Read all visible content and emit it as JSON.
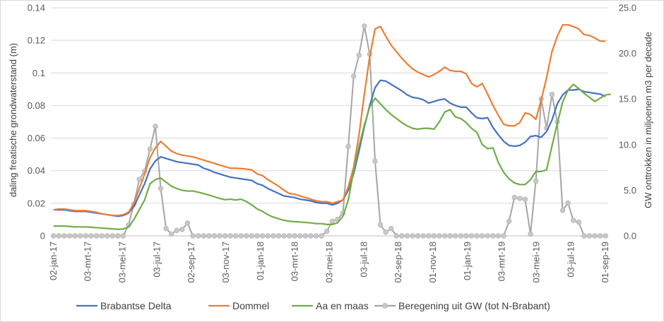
{
  "chart_data": {
    "type": "line",
    "ylabel_left": "daling freatische grondwaterstand (m)",
    "ylabel_right": "GW onttrokken in miljoenen m3 per decade",
    "ylim_left": [
      0,
      0.14
    ],
    "ylim_right": [
      0,
      25
    ],
    "yticks_left": [
      "0",
      "0.02",
      "0.04",
      "0.06",
      "0.08",
      "0.1",
      "0.12",
      "0.14"
    ],
    "yticks_right": [
      "0.0",
      "5.0",
      "10.0",
      "15.0",
      "20.0",
      "25.0"
    ],
    "x_labels": [
      "02-jan-17",
      "03-mrt-17",
      "03-mei-17",
      "03-jul-17",
      "02-sep-17",
      "03-nov-17",
      "01-jan-18",
      "03-mrt-18",
      "03-mei-18",
      "03-jul-18",
      "02-sep-18",
      "01-nov-18",
      "01-jan-19",
      "03-mrt-19",
      "03-mei-19",
      "03-jul-19",
      "01-sep-19"
    ],
    "grid": "horizontal",
    "legend_position": "bottom",
    "colors": {
      "brabantse_delta": "#4472c4",
      "dommel": "#ed7d31",
      "aa_en_maas": "#70ad47",
      "beregening": "#a5a5a5"
    },
    "series": [
      {
        "name": "Brabantse Delta",
        "axis": "left",
        "values": [
          0.016,
          0.016,
          0.016,
          0.0155,
          0.015,
          0.015,
          0.015,
          0.0145,
          0.014,
          0.0135,
          0.013,
          0.0125,
          0.012,
          0.0125,
          0.014,
          0.018,
          0.025,
          0.032,
          0.041,
          0.046,
          0.0485,
          0.0475,
          0.0465,
          0.0455,
          0.045,
          0.0445,
          0.044,
          0.0435,
          0.0415,
          0.0405,
          0.039,
          0.038,
          0.037,
          0.036,
          0.0355,
          0.035,
          0.0345,
          0.034,
          0.032,
          0.031,
          0.029,
          0.0275,
          0.026,
          0.0245,
          0.024,
          0.0235,
          0.0225,
          0.022,
          0.0215,
          0.0205,
          0.02,
          0.02,
          0.019,
          0.02,
          0.022,
          0.028,
          0.038,
          0.052,
          0.067,
          0.08,
          0.091,
          0.0955,
          0.095,
          0.093,
          0.091,
          0.089,
          0.0865,
          0.085,
          0.0845,
          0.0835,
          0.0815,
          0.0825,
          0.0835,
          0.084,
          0.0815,
          0.08,
          0.079,
          0.079,
          0.0755,
          0.0725,
          0.072,
          0.0725,
          0.0665,
          0.062,
          0.058,
          0.0555,
          0.055,
          0.0555,
          0.0575,
          0.061,
          0.0615,
          0.0605,
          0.064,
          0.071,
          0.081,
          0.0865,
          0.0895,
          0.0895,
          0.09,
          0.0885,
          0.088,
          0.0875,
          0.087,
          0.0855
        ]
      },
      {
        "name": "Dommel",
        "axis": "left",
        "values": [
          0.016,
          0.0165,
          0.0165,
          0.016,
          0.0155,
          0.0155,
          0.0155,
          0.015,
          0.0145,
          0.0135,
          0.013,
          0.0125,
          0.0125,
          0.013,
          0.0145,
          0.02,
          0.029,
          0.038,
          0.048,
          0.054,
          0.058,
          0.055,
          0.052,
          0.0505,
          0.0495,
          0.049,
          0.0485,
          0.0475,
          0.0465,
          0.0455,
          0.0445,
          0.0435,
          0.0425,
          0.0415,
          0.0415,
          0.0413,
          0.041,
          0.0405,
          0.038,
          0.037,
          0.0345,
          0.0325,
          0.0305,
          0.028,
          0.026,
          0.0255,
          0.0245,
          0.0235,
          0.0225,
          0.0215,
          0.021,
          0.021,
          0.02,
          0.021,
          0.022,
          0.03,
          0.042,
          0.062,
          0.087,
          0.11,
          0.127,
          0.1285,
          0.1225,
          0.117,
          0.113,
          0.109,
          0.1055,
          0.1025,
          0.1005,
          0.099,
          0.0975,
          0.099,
          0.101,
          0.1035,
          0.1015,
          0.101,
          0.101,
          0.0995,
          0.0935,
          0.0915,
          0.0935,
          0.087,
          0.08,
          0.074,
          0.0685,
          0.0675,
          0.0675,
          0.0695,
          0.0755,
          0.0745,
          0.0715,
          0.0835,
          0.097,
          0.113,
          0.1225,
          0.1295,
          0.1295,
          0.1285,
          0.127,
          0.1235,
          0.123,
          0.1215,
          0.1195,
          0.1195
        ]
      },
      {
        "name": "Aa en maas",
        "axis": "left",
        "values": [
          0.006,
          0.006,
          0.006,
          0.0058,
          0.0055,
          0.0055,
          0.0055,
          0.0053,
          0.005,
          0.0048,
          0.0045,
          0.0043,
          0.004,
          0.0042,
          0.0055,
          0.01,
          0.016,
          0.022,
          0.032,
          0.0345,
          0.0355,
          0.033,
          0.0305,
          0.029,
          0.028,
          0.0275,
          0.0275,
          0.0268,
          0.026,
          0.025,
          0.024,
          0.023,
          0.0222,
          0.0225,
          0.022,
          0.0225,
          0.021,
          0.019,
          0.0165,
          0.015,
          0.013,
          0.0115,
          0.0105,
          0.0095,
          0.009,
          0.0087,
          0.0085,
          0.0082,
          0.008,
          0.0075,
          0.0075,
          0.007,
          0.007,
          0.008,
          0.012,
          0.022,
          0.04,
          0.055,
          0.068,
          0.079,
          0.0845,
          0.081,
          0.0775,
          0.0745,
          0.072,
          0.0695,
          0.0675,
          0.066,
          0.0655,
          0.066,
          0.066,
          0.0655,
          0.07,
          0.076,
          0.0775,
          0.073,
          0.072,
          0.0695,
          0.066,
          0.0635,
          0.056,
          0.0535,
          0.054,
          0.045,
          0.039,
          0.035,
          0.0325,
          0.0315,
          0.0315,
          0.0345,
          0.0395,
          0.0395,
          0.0405,
          0.055,
          0.069,
          0.082,
          0.0895,
          0.093,
          0.0905,
          0.0875,
          0.085,
          0.0825,
          0.0845,
          0.0865,
          0.087
        ]
      },
      {
        "name": "Beregening uit GW (tot N-Brabant)",
        "axis": "right",
        "values": [
          0,
          0,
          0,
          0,
          0,
          0,
          0,
          0,
          0,
          0,
          0,
          0,
          0,
          0,
          1.2,
          3.5,
          6.2,
          7.1,
          9.5,
          12.0,
          5.2,
          0.8,
          0.2,
          0.6,
          0.7,
          1.4,
          0,
          0,
          0,
          0,
          0,
          0,
          0,
          0,
          0,
          0,
          0,
          0,
          0,
          0,
          0,
          0,
          0,
          0,
          0,
          0,
          0,
          0,
          0,
          0,
          0,
          0.5,
          1.6,
          1.8,
          2.5,
          9.8,
          17.5,
          19.8,
          23.0,
          19.9,
          8.2,
          1.2,
          0.4,
          0.8,
          0,
          0,
          0,
          0,
          0,
          0,
          0,
          0,
          0,
          0,
          0,
          0,
          0,
          0,
          0,
          0,
          0,
          0,
          0,
          0,
          0,
          1.6,
          4.2,
          4.1,
          4.0,
          0.2,
          6.0,
          15.0,
          11.8,
          15.5,
          12.5,
          2.8,
          3.6,
          1.7,
          1.5,
          0,
          0,
          0,
          0,
          0
        ]
      }
    ]
  }
}
